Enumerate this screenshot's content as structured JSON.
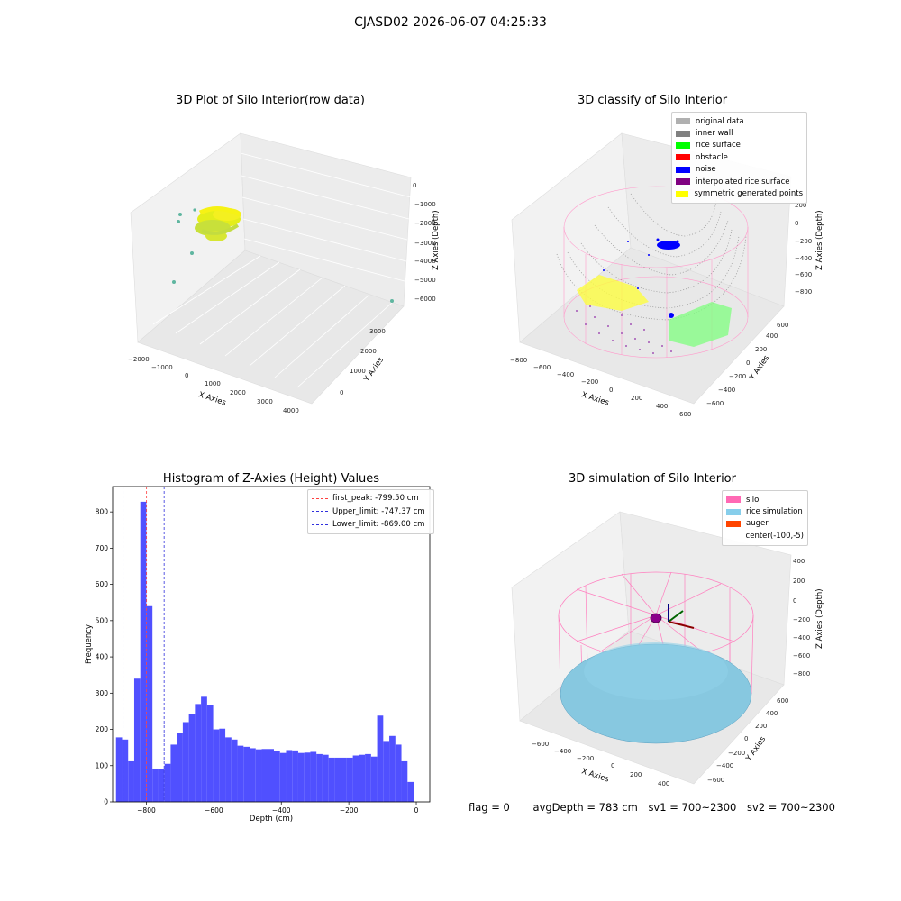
{
  "figure_title": "CJASD02 2026-06-07 04:25:33",
  "colors": {
    "histogram_bar": "#5050ff",
    "first_peak": "#ff4040",
    "limit": "#3030dd"
  },
  "footer": {
    "flag": "flag = 0",
    "avg_depth": "avgDepth = 783 cm",
    "sv1": "sv1 = 700~2300",
    "sv2": "sv2 = 700~2300"
  },
  "plots": {
    "raw": {
      "title": "3D Plot of Silo Interior(row data)",
      "xlabel": "X Axies",
      "ylabel": "Y Axies",
      "zlabel": "Z Axies (Depth)",
      "x_ticks": [
        "−2000",
        "−1000",
        "0",
        "1000",
        "2000",
        "3000",
        "4000"
      ],
      "y_ticks": [
        "0",
        "1000",
        "2000",
        "3000"
      ],
      "z_ticks": [
        "0",
        "−1000",
        "−2000",
        "−3000",
        "−4000",
        "−5000",
        "−6000"
      ]
    },
    "classify": {
      "title": "3D classify of Silo Interior",
      "xlabel": "X Axies",
      "ylabel": "Y Axies",
      "zlabel": "Z Axies (Depth)",
      "x_ticks": [
        "−800",
        "−600",
        "−400",
        "−200",
        "0",
        "200",
        "400",
        "600"
      ],
      "y_ticks": [
        "−600",
        "−400",
        "−200",
        "0",
        "200",
        "400",
        "600"
      ],
      "z_ticks": [
        "200",
        "0",
        "−200",
        "−400",
        "−600",
        "−800"
      ],
      "legend": [
        {
          "label": "original data",
          "color": "#b0b0b0"
        },
        {
          "label": "inner wall",
          "color": "#808080"
        },
        {
          "label": "rice surface",
          "color": "#00ff00"
        },
        {
          "label": "obstacle",
          "color": "#ff0000"
        },
        {
          "label": "noise",
          "color": "#0000ff"
        },
        {
          "label": "interpolated rice surface",
          "color": "#800080"
        },
        {
          "label": "symmetric generated points",
          "color": "#ffff00"
        }
      ]
    },
    "simulation": {
      "title": "3D simulation of Silo Interior",
      "xlabel": "X Axies",
      "ylabel": "Y Axies",
      "zlabel": "Z Axies (Depth)",
      "x_ticks": [
        "−600",
        "−400",
        "−200",
        "0",
        "200",
        "400"
      ],
      "y_ticks": [
        "−600",
        "−400",
        "−200",
        "0",
        "200",
        "400",
        "600"
      ],
      "z_ticks": [
        "400",
        "200",
        "0",
        "−200",
        "−400",
        "−600",
        "−800"
      ],
      "legend": [
        {
          "label": "silo",
          "color": "#ff69b4"
        },
        {
          "label": "rice simulation",
          "color": "#87ceeb"
        },
        {
          "label": "auger",
          "color": "#ff4500"
        },
        {
          "label": "center(-100,-5)",
          "color": ""
        }
      ]
    }
  },
  "chart_data": {
    "type": "bar",
    "title": "Histogram of Z-Axies (Height) Values",
    "xlabel": "Depth (cm)",
    "ylabel": "Frequency",
    "xlim": [
      -900,
      40
    ],
    "ylim": [
      0,
      870
    ],
    "x_ticks": [
      -800,
      -600,
      -400,
      -200,
      0
    ],
    "y_ticks": [
      0,
      100,
      200,
      300,
      400,
      500,
      600,
      700,
      800
    ],
    "bin_width": 18,
    "bin_start": -890,
    "values": [
      178,
      172,
      112,
      340,
      828,
      540,
      92,
      90,
      105,
      158,
      190,
      220,
      242,
      270,
      290,
      268,
      200,
      202,
      178,
      172,
      155,
      152,
      148,
      145,
      146,
      146,
      140,
      135,
      143,
      142,
      135,
      136,
      138,
      132,
      130,
      122,
      122,
      122,
      122,
      128,
      130,
      132,
      125,
      238,
      168,
      182,
      158,
      112,
      55
    ],
    "lines": [
      {
        "label": "first_peak: -799.50 cm",
        "x": -799.5,
        "color": "#ff4040"
      },
      {
        "label": "Upper_limit: -747.37 cm",
        "x": -747.37,
        "color": "#3030dd"
      },
      {
        "label": "Lower_limit: -869.00 cm",
        "x": -869.0,
        "color": "#3030dd"
      }
    ]
  }
}
